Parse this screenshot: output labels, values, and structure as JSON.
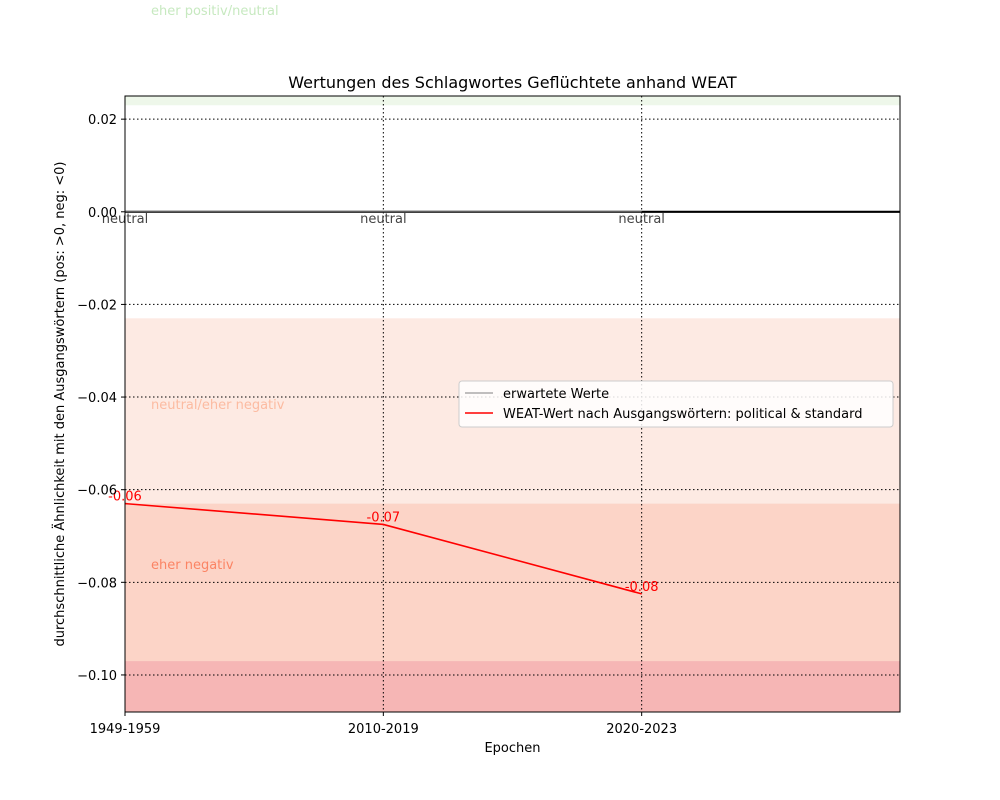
{
  "chart_data": {
    "type": "line",
    "title": "Wertungen des Schlagwortes Geflüchtete anhand WEAT",
    "xlabel": "Epochen",
    "ylabel": "durchschnittliche Ähnlichkeit mit den Ausgangswörtern (pos: >0, neg: <0)",
    "categories": [
      "1949-1959",
      "2010-2019",
      "2020-2023"
    ],
    "xlim": [
      0,
      3
    ],
    "ylim": [
      -0.108,
      0.025
    ],
    "yticks": [
      0.02,
      0.0,
      -0.02,
      -0.04,
      -0.06,
      -0.08,
      -0.1
    ],
    "ytick_labels": [
      "0.02",
      "0.00",
      "−0.02",
      "−0.04",
      "−0.06",
      "−0.08",
      "−0.10"
    ],
    "grid": true,
    "grid_style": "dotted",
    "series": [
      {
        "name": "erwartete Werte",
        "color": "#808080",
        "values": [
          0.0,
          0.0,
          0.0
        ],
        "labels": [
          "neutral",
          "neutral",
          "neutral"
        ]
      },
      {
        "name": "WEAT-Wert nach Ausgangswörtern: political & standard",
        "color": "#ff0000",
        "values": [
          -0.063,
          -0.0675,
          -0.0825
        ],
        "labels": [
          "-0.06",
          "-0.07",
          "-0.08"
        ]
      }
    ],
    "bands": [
      {
        "label": "eher positiv/neutral",
        "from": 0.023,
        "to": 0.025,
        "color": "#eef7ea",
        "label_color": "#c7e9c0"
      },
      {
        "label": "neutral/eher negativ",
        "from": -0.063,
        "to": -0.023,
        "color": "#fdeae3",
        "label_color": "#fcbba1"
      },
      {
        "label": "eher negativ",
        "from": -0.097,
        "to": -0.063,
        "color": "#fcd4c7",
        "label_color": "#fb8464"
      },
      {
        "label": "",
        "from": -0.108,
        "to": -0.097,
        "color": "#f6b6b5",
        "label_color": "#f6b6b5"
      }
    ],
    "zero_line_color": "#000000",
    "legend_position": "center-right"
  }
}
